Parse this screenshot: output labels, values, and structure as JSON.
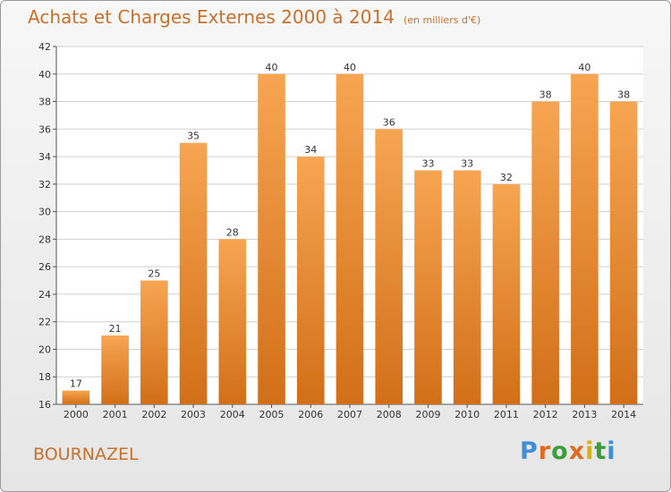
{
  "header": {
    "title": "Achats et Charges Externes 2000 à 2014",
    "unit": "(en milliers d'€)"
  },
  "footer": {
    "commune": "BOURNAZEL",
    "brand": "Proxiti"
  },
  "colors": {
    "bar_top": "#f7a552",
    "bar_bottom": "#d26f18",
    "title": "#c8702c",
    "grid": "#cfcfcf",
    "brand_letters": [
      "#3f8fd6",
      "#e06a20",
      "#3a9f3a",
      "#e06a20",
      "#d7b01a",
      "#3a9f3a",
      "#3f8fd6"
    ]
  },
  "chart_data": {
    "type": "bar",
    "categories": [
      "2000",
      "2001",
      "2002",
      "2003",
      "2004",
      "2005",
      "2006",
      "2007",
      "2008",
      "2009",
      "2010",
      "2011",
      "2012",
      "2013",
      "2014"
    ],
    "values": [
      17,
      21,
      25,
      35,
      28,
      40,
      34,
      40,
      36,
      33,
      33,
      32,
      38,
      40,
      38
    ],
    "ylim": [
      16,
      42
    ],
    "yticks": [
      16,
      18,
      20,
      22,
      24,
      26,
      28,
      30,
      32,
      34,
      36,
      38,
      40,
      42
    ],
    "title": "Achats et Charges Externes 2000 à 2014",
    "xlabel": "",
    "ylabel": "",
    "grid": true,
    "data_labels": true
  }
}
